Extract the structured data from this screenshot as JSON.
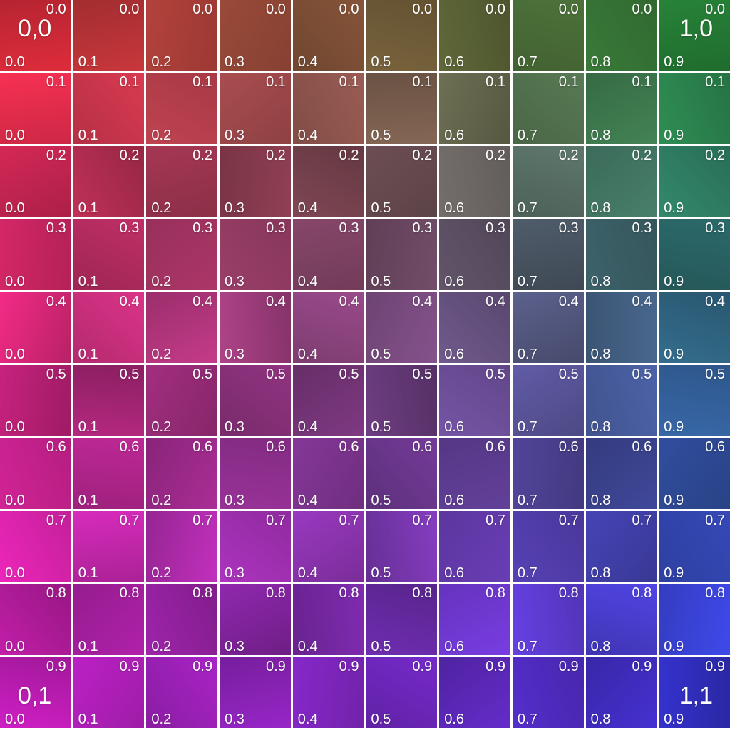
{
  "grid": {
    "rows": 10,
    "cols": 10,
    "row_labels": [
      "0.0",
      "0.1",
      "0.2",
      "0.3",
      "0.4",
      "0.5",
      "0.6",
      "0.7",
      "0.8",
      "0.9"
    ],
    "col_labels": [
      "0.0",
      "0.1",
      "0.2",
      "0.3",
      "0.4",
      "0.5",
      "0.6",
      "0.7",
      "0.8",
      "0.9"
    ],
    "corner_labels": {
      "top_left": "0,0",
      "top_right": "1,0",
      "bottom_left": "0,1",
      "bottom_right": "1,1"
    },
    "corner_colors": {
      "top_left": "#d2232e",
      "top_right": "#1e8f31",
      "bottom_left": "#bf1ab5",
      "bottom_right": "#2e2ed8"
    },
    "line_color": "#ffffff",
    "label_color": "#ffffff"
  }
}
